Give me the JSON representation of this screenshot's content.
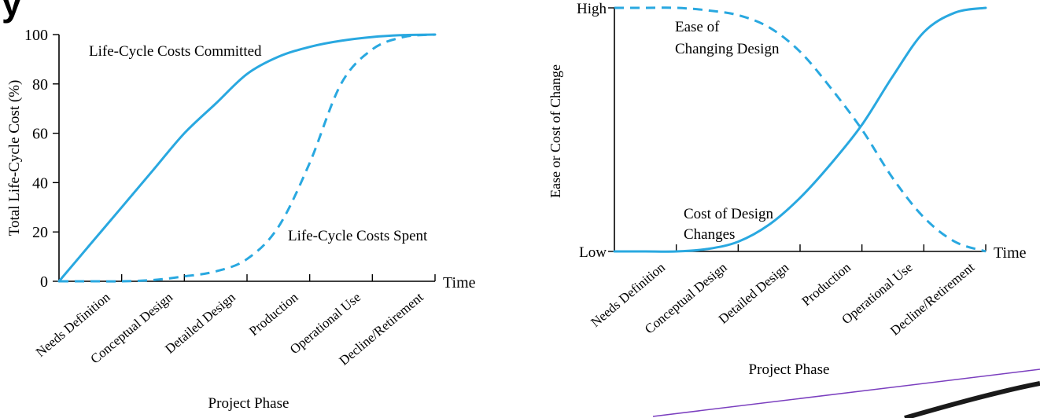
{
  "heading_fragment": "y",
  "colors": {
    "curve": "#29A8E0",
    "axis": "#000000",
    "accent_line": "#7B3FBF"
  },
  "chart_data": [
    {
      "type": "line",
      "ylabel": "Total Life-Cycle Cost (%)",
      "xlabel": "Project Phase",
      "x_end_label": "Time",
      "ylim": [
        0,
        100
      ],
      "y_ticks": [
        0,
        20,
        40,
        60,
        80,
        100
      ],
      "phases": [
        "Needs Definition",
        "Conceptual Design",
        "Detailed Design",
        "Production",
        "Operational Use",
        "Decline/Retirement"
      ],
      "x": [
        0,
        0.5,
        1,
        1.5,
        2,
        2.5,
        3,
        3.5,
        4,
        4.5,
        5,
        5.5,
        6
      ],
      "series": [
        {
          "name": "Life-Cycle Costs Committed",
          "style": "solid",
          "values": [
            0,
            15,
            30,
            45,
            60,
            72,
            84,
            91,
            95,
            97.5,
            99,
            99.8,
            100
          ]
        },
        {
          "name": "Life-Cycle Costs Spent",
          "style": "dashed",
          "values": [
            0,
            0,
            0,
            0.5,
            2,
            4,
            9,
            22,
            48,
            80,
            94,
            99,
            100
          ]
        }
      ]
    },
    {
      "type": "line",
      "ylabel": "Ease or Cost of Change",
      "xlabel": "Project Phase",
      "x_end_label": "Time",
      "y_tick_labels": [
        "Low",
        "High"
      ],
      "phases": [
        "Needs Definition",
        "Conceptual Design",
        "Detailed Design",
        "Production",
        "Operational Use",
        "Decline/Retirement"
      ],
      "x": [
        0,
        0.5,
        1,
        1.5,
        2,
        2.5,
        3,
        3.5,
        4,
        4.5,
        5,
        5.5,
        6
      ],
      "series": [
        {
          "name": "Ease of Changing Design",
          "label_lines": [
            "Ease of",
            "Changing Design"
          ],
          "style": "dashed",
          "values": [
            1,
            1,
            1,
            0.99,
            0.97,
            0.92,
            0.82,
            0.67,
            0.5,
            0.3,
            0.14,
            0.04,
            0
          ]
        },
        {
          "name": "Cost of Design Changes",
          "label_lines": [
            "Cost of Design",
            "Changes"
          ],
          "style": "solid",
          "values": [
            0,
            0,
            0,
            0.01,
            0.04,
            0.11,
            0.22,
            0.36,
            0.52,
            0.72,
            0.9,
            0.98,
            1
          ]
        }
      ]
    }
  ]
}
